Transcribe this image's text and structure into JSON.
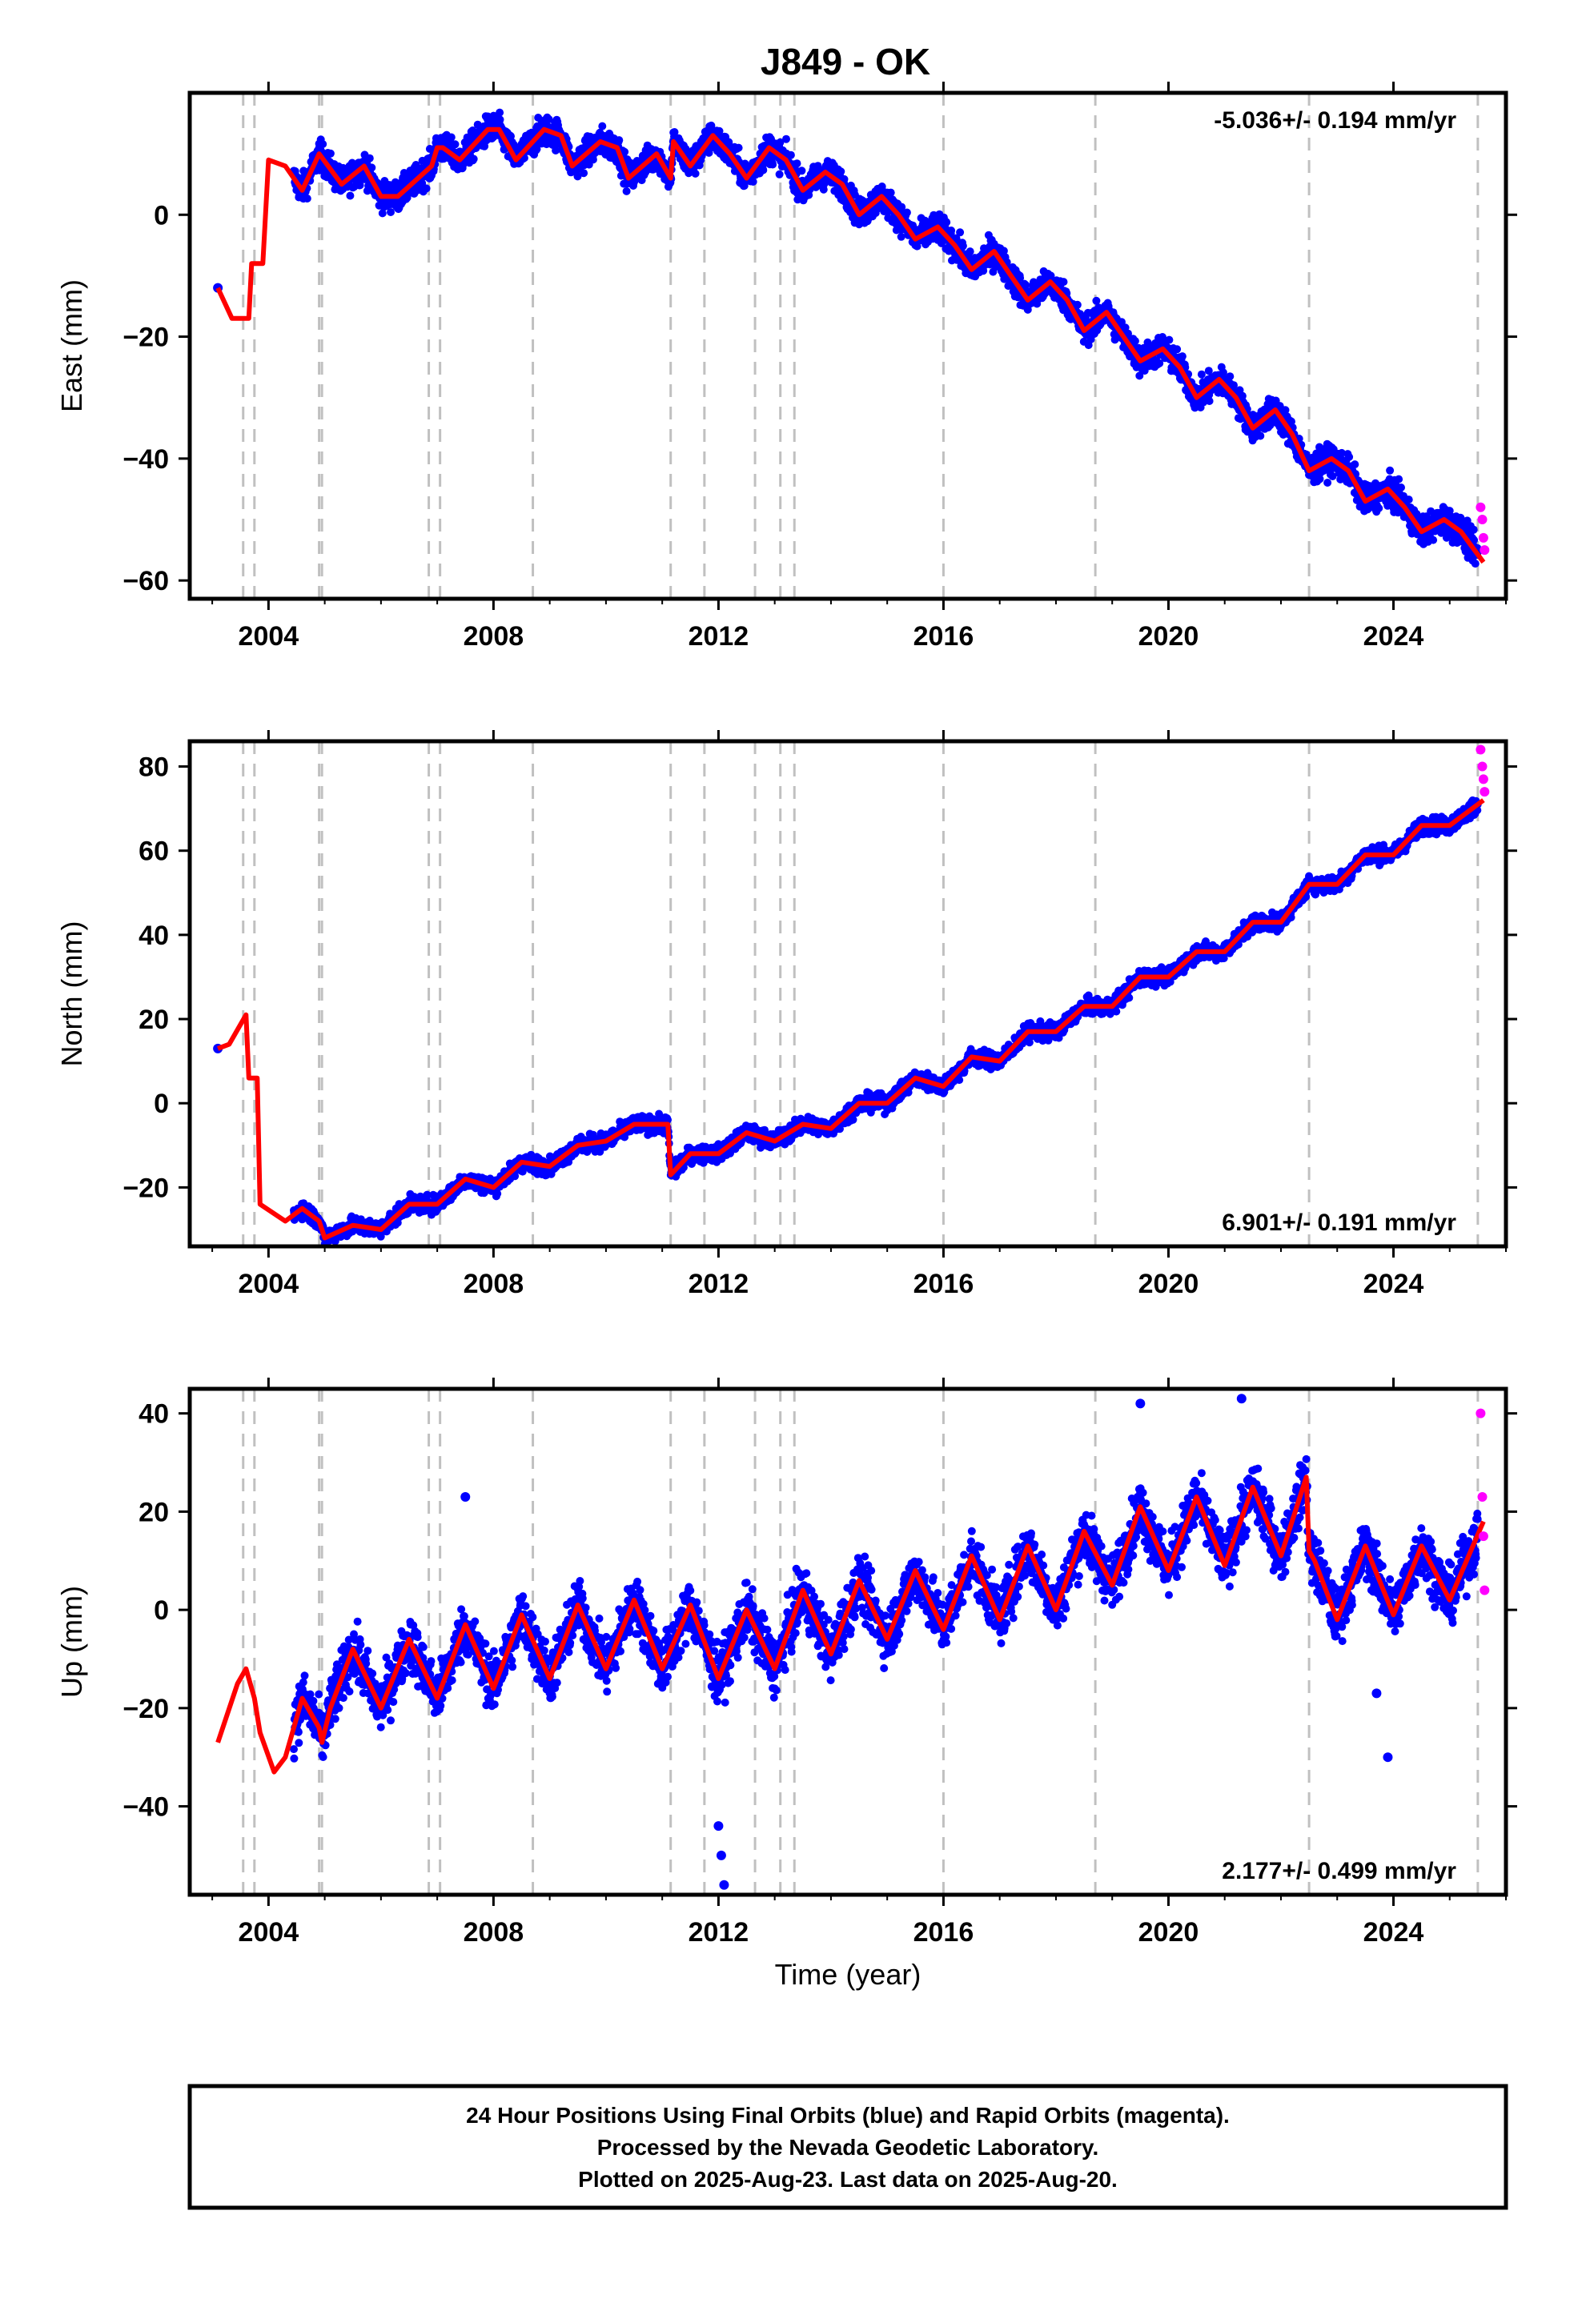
{
  "title": "J849 - OK",
  "colors": {
    "final": "#0000ff",
    "rapid": "#ff00ff",
    "model": "#ff0000",
    "event_lines": "#c0c0c0"
  },
  "footer": {
    "lines": [
      "24 Hour Positions Using Final Orbits (blue) and Rapid Orbits (magenta).",
      "Processed by the Nevada Geodetic Laboratory.",
      "Plotted on 2025-Aug-23. Last data on 2025-Aug-20."
    ]
  },
  "chart_data": [
    {
      "type": "scatter",
      "component": "east",
      "ylabel": "East (mm)",
      "xlabel": "",
      "rate": "-5.036+/- 0.194 mm/yr",
      "rate_position": "top-right",
      "xlim": [
        2002.6,
        2026.0
      ],
      "ylim": [
        -63,
        20
      ],
      "x_ticks": [
        2004,
        2008,
        2012,
        2016,
        2020,
        2024
      ],
      "y_ticks": [
        0,
        -20,
        -40,
        -60
      ],
      "y_tick_labels": [
        "0",
        "−20",
        "−40",
        "−60"
      ],
      "event_lines": [
        2003.55,
        2003.75,
        2004.9,
        2004.95,
        2006.85,
        2007.05,
        2008.7,
        2011.15,
        2011.75,
        2012.65,
        2013.1,
        2013.35,
        2016.0,
        2018.7,
        2022.5,
        2025.5
      ],
      "series": [
        {
          "role": "model",
          "x": [
            2003.1,
            2003.35,
            2003.65,
            2003.7,
            2003.9,
            2004.0,
            2004.3,
            2004.6,
            2004.9,
            2005.3,
            2005.7,
            2006.0,
            2006.3,
            2006.9,
            2007.0,
            2007.1,
            2007.4,
            2007.9,
            2008.1,
            2008.4,
            2008.9,
            2009.2,
            2009.4,
            2009.9,
            2010.2,
            2010.4,
            2010.9,
            2011.15,
            2011.2,
            2011.5,
            2011.9,
            2012.2,
            2012.5,
            2012.9,
            2013.2,
            2013.5,
            2013.9,
            2014.2,
            2014.5,
            2014.9,
            2015.2,
            2015.5,
            2015.9,
            2016.2,
            2016.5,
            2016.9,
            2017.2,
            2017.5,
            2017.9,
            2018.2,
            2018.5,
            2018.9,
            2019.2,
            2019.5,
            2019.9,
            2020.2,
            2020.5,
            2020.9,
            2021.2,
            2021.5,
            2021.9,
            2022.2,
            2022.5,
            2022.9,
            2023.2,
            2023.5,
            2023.9,
            2024.2,
            2024.5,
            2024.9,
            2025.2,
            2025.6
          ],
          "y": [
            -12,
            -17,
            -17,
            -8,
            -8,
            9,
            8,
            4,
            10,
            5,
            8,
            3,
            3,
            8,
            11,
            11,
            9,
            14,
            14,
            9,
            14,
            13,
            8,
            12,
            11,
            6,
            10,
            6,
            12,
            8,
            13,
            10,
            6,
            11,
            9,
            4,
            7,
            5,
            0,
            3,
            0,
            -4,
            -2,
            -5,
            -9,
            -6,
            -10,
            -14,
            -11,
            -14,
            -19,
            -16,
            -20,
            -24,
            -22,
            -25,
            -30,
            -27,
            -30,
            -35,
            -32,
            -36,
            -42,
            -40,
            -42,
            -47,
            -45,
            -48,
            -52,
            -50,
            -52,
            -57
          ]
        },
        {
          "role": "final",
          "note": "scatter cloud traced by the model with ~2 mm daily noise",
          "x": [
            2003.1
          ],
          "y": [
            -12
          ]
        },
        {
          "role": "rapid",
          "x": [
            2025.55,
            2025.58,
            2025.6,
            2025.62
          ],
          "y": [
            -48,
            -50,
            -53,
            -55
          ]
        }
      ]
    },
    {
      "type": "scatter",
      "component": "north",
      "ylabel": "North (mm)",
      "xlabel": "",
      "rate": "6.901+/- 0.191 mm/yr",
      "rate_position": "bottom-right",
      "xlim": [
        2002.6,
        2026.0
      ],
      "ylim": [
        -34,
        86
      ],
      "x_ticks": [
        2004,
        2008,
        2012,
        2016,
        2020,
        2024
      ],
      "y_ticks": [
        80,
        60,
        40,
        20,
        0,
        -20
      ],
      "y_tick_labels": [
        "80",
        "60",
        "40",
        "20",
        "0",
        "−20"
      ],
      "event_lines": [
        2003.55,
        2003.75,
        2004.9,
        2004.95,
        2006.85,
        2007.05,
        2008.7,
        2011.15,
        2011.75,
        2012.65,
        2013.1,
        2013.35,
        2016.0,
        2018.7,
        2022.5,
        2025.5
      ],
      "series": [
        {
          "role": "model",
          "x": [
            2003.1,
            2003.3,
            2003.6,
            2003.65,
            2003.8,
            2003.85,
            2004.3,
            2004.6,
            2004.9,
            2005.0,
            2005.5,
            2006.0,
            2006.5,
            2007.0,
            2007.5,
            2008.0,
            2008.5,
            2009.0,
            2009.5,
            2010.0,
            2010.5,
            2011.1,
            2011.15,
            2011.5,
            2012.0,
            2012.5,
            2013.0,
            2013.5,
            2014.0,
            2014.5,
            2015.0,
            2015.5,
            2016.0,
            2016.5,
            2017.0,
            2017.5,
            2018.0,
            2018.5,
            2019.0,
            2019.5,
            2020.0,
            2020.5,
            2021.0,
            2021.5,
            2022.0,
            2022.5,
            2023.0,
            2023.5,
            2024.0,
            2024.5,
            2025.0,
            2025.6
          ],
          "y": [
            13,
            14,
            21,
            6,
            6,
            -24,
            -28,
            -25,
            -28,
            -32,
            -29,
            -30,
            -24,
            -24,
            -18,
            -20,
            -14,
            -15,
            -10,
            -9,
            -5,
            -5,
            -17,
            -12,
            -12,
            -7,
            -9,
            -5,
            -6,
            0,
            0,
            6,
            4,
            11,
            10,
            17,
            17,
            23,
            23,
            30,
            30,
            36,
            36,
            43,
            43,
            52,
            52,
            59,
            59,
            66,
            66,
            72
          ]
        },
        {
          "role": "final",
          "note": "scatter cloud traced by the model with ~1.5 mm daily noise",
          "x": [
            2003.1
          ],
          "y": [
            13
          ]
        },
        {
          "role": "rapid",
          "x": [
            2025.55,
            2025.58,
            2025.6,
            2025.62
          ],
          "y": [
            84,
            80,
            77,
            74
          ]
        }
      ]
    },
    {
      "type": "scatter",
      "component": "up",
      "ylabel": "Up (mm)",
      "xlabel": "Time (year)",
      "rate": "2.177+/- 0.499 mm/yr",
      "rate_position": "bottom-right",
      "xlim": [
        2002.6,
        2026.0
      ],
      "ylim": [
        -58,
        45
      ],
      "x_ticks": [
        2004,
        2008,
        2012,
        2016,
        2020,
        2024
      ],
      "y_ticks": [
        40,
        20,
        0,
        -20,
        -40
      ],
      "y_tick_labels": [
        "40",
        "20",
        "0",
        "−20",
        "−40"
      ],
      "event_lines": [
        2003.55,
        2003.75,
        2004.9,
        2004.95,
        2006.85,
        2007.05,
        2008.7,
        2011.15,
        2011.75,
        2012.65,
        2013.1,
        2013.35,
        2016.0,
        2018.7,
        2022.5,
        2025.5
      ],
      "series": [
        {
          "role": "model",
          "x": [
            2003.1,
            2003.45,
            2003.6,
            2003.75,
            2003.85,
            2004.1,
            2004.3,
            2004.6,
            2004.9,
            2004.95,
            2005.1,
            2005.5,
            2006.0,
            2006.5,
            2007.0,
            2007.5,
            2008.0,
            2008.5,
            2009.0,
            2009.5,
            2010.0,
            2010.5,
            2011.0,
            2011.5,
            2012.0,
            2012.5,
            2013.0,
            2013.5,
            2014.0,
            2014.5,
            2015.0,
            2015.5,
            2016.0,
            2016.5,
            2017.0,
            2017.5,
            2018.0,
            2018.5,
            2019.0,
            2019.5,
            2020.0,
            2020.5,
            2021.0,
            2021.5,
            2022.0,
            2022.45,
            2022.5,
            2022.6,
            2023.0,
            2023.5,
            2024.0,
            2024.5,
            2025.0,
            2025.6
          ],
          "y": [
            -27,
            -15,
            -12,
            -18,
            -25,
            -33,
            -30,
            -18,
            -24,
            -27,
            -20,
            -8,
            -20,
            -6,
            -18,
            -3,
            -16,
            -1,
            -14,
            1,
            -12,
            2,
            -12,
            1,
            -14,
            0,
            -12,
            4,
            -9,
            6,
            -6,
            8,
            -4,
            11,
            -2,
            13,
            0,
            16,
            5,
            21,
            8,
            23,
            9,
            25,
            11,
            27,
            12,
            10,
            -2,
            13,
            -1,
            13,
            2,
            18
          ]
        },
        {
          "role": "final",
          "note": "scatter cloud traced by the model with ~5 mm daily noise plus isolated outliers",
          "x": [
            2007.5,
            2012.0,
            2012.05,
            2012.1,
            2019.5,
            2021.3,
            2023.7,
            2023.9
          ],
          "y": [
            23,
            -44,
            -50,
            -56,
            42,
            43,
            -17,
            -30
          ]
        },
        {
          "role": "rapid",
          "x": [
            2025.55,
            2025.58,
            2025.6,
            2025.62
          ],
          "y": [
            40,
            23,
            15,
            4
          ]
        }
      ]
    }
  ]
}
